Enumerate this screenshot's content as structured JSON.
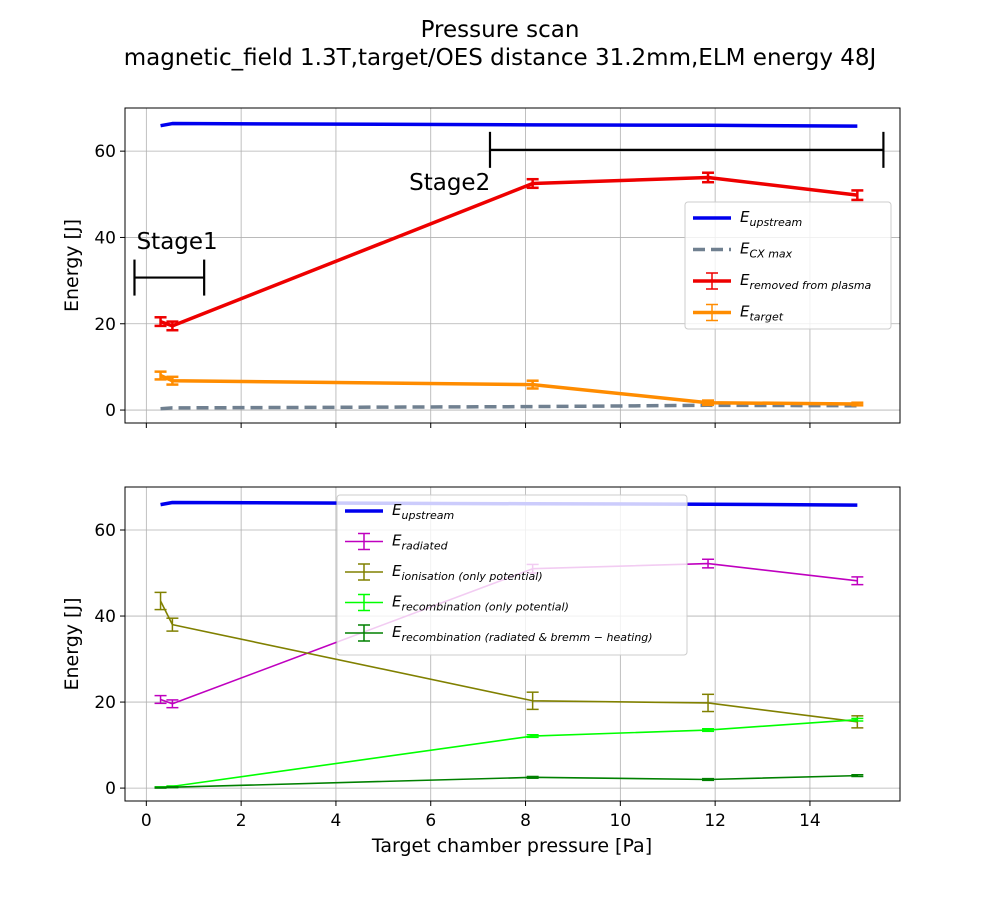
{
  "figure": {
    "title_line1": "Pressure scan",
    "title_line2": "magnetic_field 1.3T,target/OES distance 31.2mm,ELM energy 48J",
    "xlabel": "Target chamber pressure [Pa]"
  },
  "chart_data": [
    {
      "type": "line",
      "ylabel": "Energy [J]",
      "xlim": [
        -0.45,
        15.9
      ],
      "ylim": [
        -3,
        70
      ],
      "xticks": [
        0,
        2,
        4,
        6,
        8,
        10,
        12,
        14
      ],
      "yticks": [
        0,
        20,
        40,
        60
      ],
      "grid": true,
      "legend_placement": "center-right",
      "series": [
        {
          "id": "upstream",
          "name": "E",
          "sub": "upstream",
          "color": "#0000ee",
          "width": 3.5,
          "dash": "",
          "errorbars": false,
          "x": [
            0.3,
            0.55,
            8.15,
            11.85,
            15.0
          ],
          "y": [
            65.9,
            66.4,
            66.1,
            66.0,
            65.8
          ],
          "err": []
        },
        {
          "id": "cxmax",
          "name": "E",
          "sub": "CX max",
          "color": "#708090",
          "width": 3.5,
          "dash": "12,6",
          "errorbars": false,
          "x": [
            0.3,
            0.55,
            8.15,
            11.85,
            15.0
          ],
          "y": [
            0.3,
            0.5,
            0.8,
            1.1,
            1.0
          ],
          "err": []
        },
        {
          "id": "removed",
          "name": "E",
          "sub": "removed from plasma",
          "color": "#ee0000",
          "width": 3.5,
          "dash": "",
          "errorbars": true,
          "x": [
            0.3,
            0.55,
            8.15,
            11.85,
            15.0
          ],
          "y": [
            20.5,
            19.5,
            52.5,
            53.9,
            49.8
          ],
          "err": [
            1.0,
            1.0,
            1.0,
            1.1,
            1.1
          ]
        },
        {
          "id": "target",
          "name": "E",
          "sub": "target",
          "color": "#ff8c00",
          "width": 3.5,
          "dash": "",
          "errorbars": true,
          "x": [
            0.3,
            0.55,
            8.15,
            11.85,
            15.0
          ],
          "y": [
            8.0,
            6.8,
            5.9,
            1.7,
            1.4
          ],
          "err": [
            0.9,
            0.9,
            0.9,
            0.5,
            0.3
          ]
        }
      ],
      "annotations": [
        {
          "text": "Stage1",
          "x": 0.65,
          "y": 37.3,
          "bracket": [
            -0.25,
            1.22
          ],
          "bracket_y": 30.7
        },
        {
          "text": "Stage2",
          "x": 6.4,
          "y": 51.0,
          "bracket": [
            7.25,
            15.55
          ],
          "bracket_y": 60.3
        }
      ]
    },
    {
      "type": "line",
      "ylabel": "Energy [J]",
      "xlim": [
        -0.45,
        15.9
      ],
      "ylim": [
        -3,
        70
      ],
      "xticks": [
        0,
        2,
        4,
        6,
        8,
        10,
        12,
        14
      ],
      "yticks": [
        0,
        20,
        40,
        60
      ],
      "grid": true,
      "legend_placement": "upper-center",
      "series": [
        {
          "id": "upstream2",
          "name": "E",
          "sub": "upstream",
          "color": "#0000ee",
          "width": 3.5,
          "dash": "",
          "errorbars": false,
          "x": [
            0.3,
            0.55,
            8.15,
            11.85,
            15.0
          ],
          "y": [
            65.9,
            66.4,
            66.1,
            66.0,
            65.8
          ],
          "err": []
        },
        {
          "id": "radiated",
          "name": "E",
          "sub": "radiated",
          "color": "#bf00bf",
          "width": 1.6,
          "dash": "",
          "errorbars": true,
          "x": [
            0.3,
            0.55,
            8.15,
            11.85,
            15.0
          ],
          "y": [
            20.6,
            19.6,
            51.0,
            52.2,
            48.2
          ],
          "err": [
            0.9,
            0.9,
            1.0,
            1.0,
            0.9
          ]
        },
        {
          "id": "ionisation",
          "name": "E",
          "sub": "ionisation (only potential)",
          "color": "#808000",
          "width": 1.6,
          "dash": "",
          "errorbars": true,
          "x": [
            0.3,
            0.55,
            8.15,
            11.85,
            15.0
          ],
          "y": [
            43.5,
            38.0,
            20.3,
            19.8,
            15.4
          ],
          "err": [
            2.0,
            1.5,
            2.0,
            2.0,
            1.4
          ]
        },
        {
          "id": "recomb_pot",
          "name": "E",
          "sub": "recombination (only potential)",
          "color": "#00ff00",
          "width": 1.6,
          "dash": "",
          "errorbars": true,
          "x": [
            0.3,
            0.55,
            8.15,
            11.85,
            15.0
          ],
          "y": [
            0.2,
            0.4,
            12.1,
            13.5,
            15.9
          ],
          "err": [
            0.1,
            0.1,
            0.3,
            0.3,
            0.3
          ]
        },
        {
          "id": "recomb_rad",
          "name": "E",
          "sub": "recombination (radiated & bremm − heating)",
          "color": "#008000",
          "width": 1.6,
          "dash": "",
          "errorbars": true,
          "x": [
            0.3,
            0.55,
            8.15,
            11.85,
            15.0
          ],
          "y": [
            0.1,
            0.2,
            2.5,
            2.0,
            2.9
          ],
          "err": [
            0.1,
            0.1,
            0.2,
            0.2,
            0.2
          ]
        }
      ],
      "annotations": []
    }
  ]
}
